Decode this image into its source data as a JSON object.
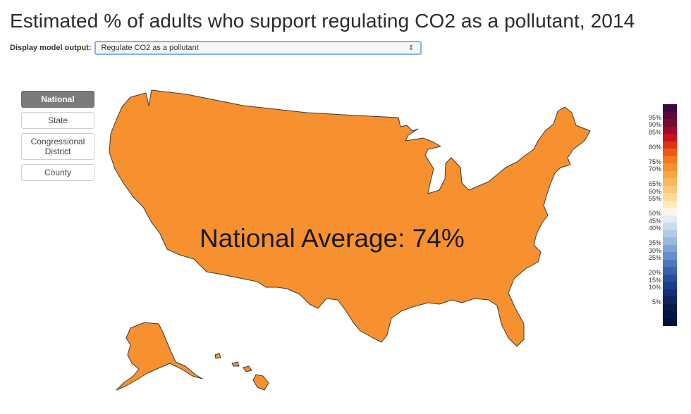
{
  "title": "Estimated % of adults who support regulating CO2 as a pollutant, 2014",
  "model_output": {
    "label": "Display model output:",
    "selected": "Regulate CO2 as a pollutant",
    "arrow": "⇕"
  },
  "geo_buttons": [
    {
      "label": "National",
      "active": true
    },
    {
      "label": "State",
      "active": false
    },
    {
      "label": "Congressional District",
      "active": false
    },
    {
      "label": "County",
      "active": false
    }
  ],
  "map": {
    "fill_color": "#f7902f",
    "stroke_color": "#3a3a3a",
    "average_text": "National Average: 74%"
  },
  "legend": [
    {
      "label": "",
      "color": "#3b0a40"
    },
    {
      "label": "95%",
      "color": "#5a0a3c"
    },
    {
      "label": "90%",
      "color": "#7a0834"
    },
    {
      "label": "85%",
      "color": "#a00a2a"
    },
    {
      "label": "",
      "color": "#c8121f"
    },
    {
      "label": "80%",
      "color": "#dd3514"
    },
    {
      "label": "",
      "color": "#e95b12"
    },
    {
      "label": "75%",
      "color": "#f47a1e"
    },
    {
      "label": "70%",
      "color": "#f7902f"
    },
    {
      "label": "",
      "color": "#f9a544"
    },
    {
      "label": "65%",
      "color": "#fbb85c"
    },
    {
      "label": "60%",
      "color": "#fcca76"
    },
    {
      "label": "55%",
      "color": "#fddb97"
    },
    {
      "label": "",
      "color": "#feeabb"
    },
    {
      "label": "50%",
      "color": "#fdf7e6"
    },
    {
      "label": "45%",
      "color": "#e5eef8"
    },
    {
      "label": "40%",
      "color": "#ccdcf0"
    },
    {
      "label": "",
      "color": "#b3cbe7"
    },
    {
      "label": "35%",
      "color": "#9ab8de"
    },
    {
      "label": "30%",
      "color": "#80a3d3"
    },
    {
      "label": "25%",
      "color": "#668ec8"
    },
    {
      "label": "",
      "color": "#4f78bb"
    },
    {
      "label": "20%",
      "color": "#3a63ad"
    },
    {
      "label": "15%",
      "color": "#2a4f9c"
    },
    {
      "label": "10%",
      "color": "#1e3d88"
    },
    {
      "label": "",
      "color": "#162f74"
    },
    {
      "label": "5%",
      "color": "#10235f"
    },
    {
      "label": "",
      "color": "#0b1a4e"
    },
    {
      "label": "",
      "color": "#071442"
    },
    {
      "label": "",
      "color": "#040e36"
    }
  ]
}
